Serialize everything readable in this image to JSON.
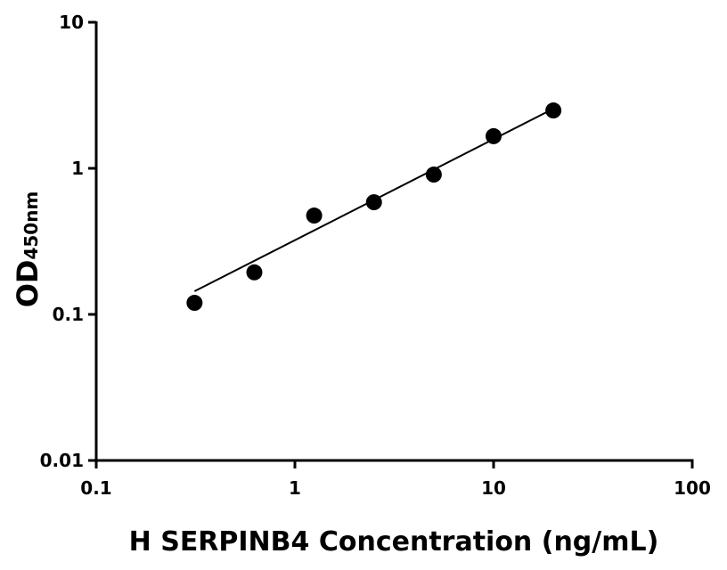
{
  "chart_data": {
    "type": "scatter",
    "x_label": "H SERPINB4 Concentration (ng/mL)",
    "y_label": "OD",
    "y_label_subscript": "450nm",
    "x_scale": "log",
    "y_scale": "log",
    "xlim": [
      0.1,
      100
    ],
    "xticks": [
      0.1,
      1,
      10,
      100
    ],
    "ylim": [
      0.01,
      10
    ],
    "yticks": [
      0.01,
      0.1,
      1,
      10
    ],
    "series": [
      {
        "color": "#000000",
        "marker": "circle",
        "x": [
          0.3125,
          0.625,
          1.25,
          2.5,
          5,
          10,
          20
        ],
        "values": [
          0.12,
          0.194,
          0.475,
          0.586,
          0.906,
          1.66,
          2.49
        ]
      },
      {
        "color": "#000000",
        "marker": "line",
        "x": [
          0.3125,
          20
        ],
        "values": [
          0.144,
          2.56
        ]
      }
    ]
  }
}
